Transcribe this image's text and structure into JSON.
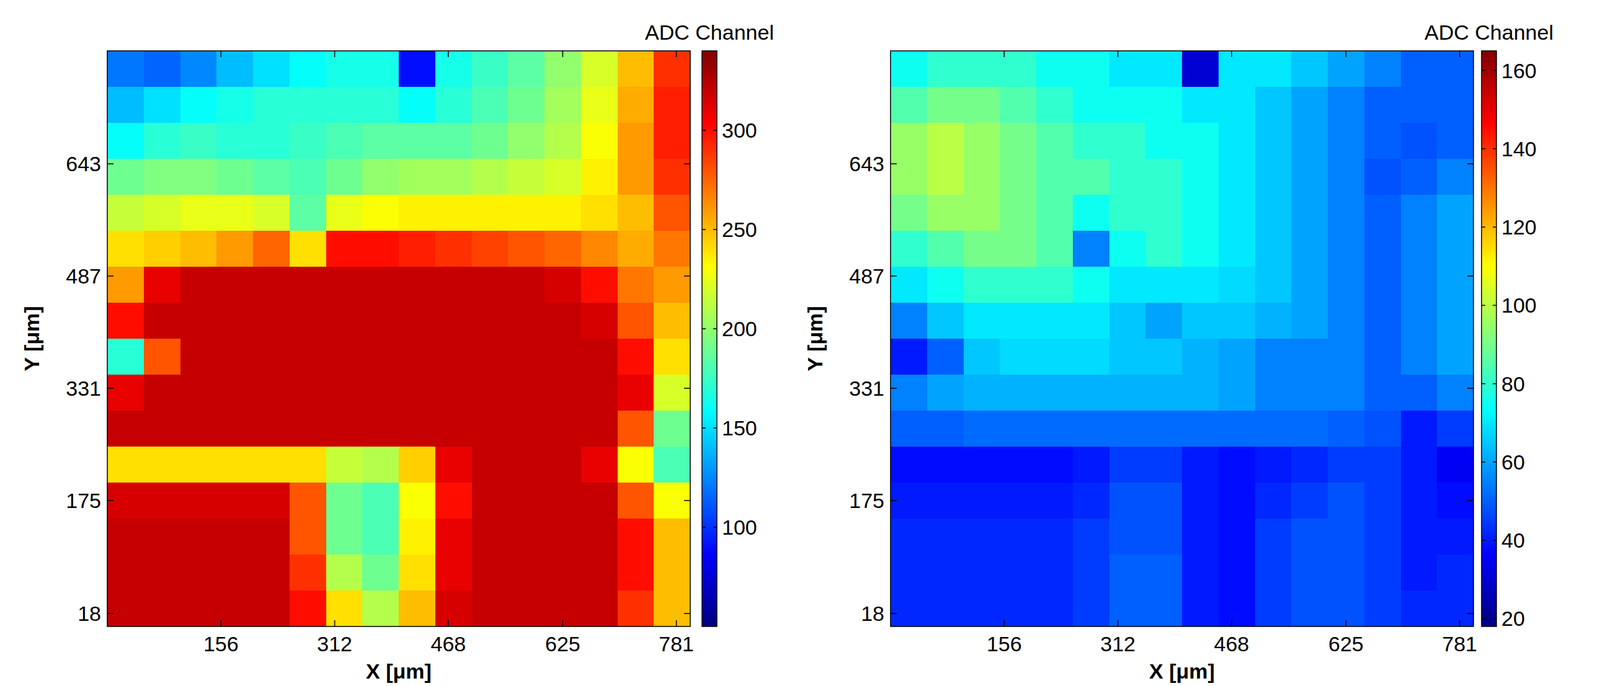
{
  "chart_data": [
    {
      "type": "heatmap",
      "xlabel": "X [μm]",
      "ylabel": "Y [μm]",
      "xlim": [
        0,
        800
      ],
      "ylim": [
        0,
        800
      ],
      "xticks": [
        156,
        312,
        468,
        625,
        781
      ],
      "yticks": [
        18,
        175,
        331,
        487,
        643
      ],
      "colorbar_label": "ADC Channel",
      "color_range": [
        50,
        340
      ],
      "color_ticks": [
        100,
        150,
        200,
        250,
        300
      ],
      "cells": [
        [
          120,
          115,
          125,
          140,
          150,
          160,
          165,
          165,
          90,
          165,
          175,
          185,
          200,
          220,
          250,
          290
        ],
        [
          140,
          150,
          160,
          165,
          170,
          170,
          170,
          170,
          160,
          170,
          180,
          190,
          205,
          225,
          255,
          295
        ],
        [
          160,
          170,
          175,
          170,
          170,
          175,
          180,
          185,
          185,
          185,
          190,
          200,
          210,
          230,
          260,
          295
        ],
        [
          190,
          195,
          195,
          190,
          185,
          180,
          190,
          200,
          205,
          205,
          210,
          215,
          220,
          235,
          260,
          290
        ],
        [
          215,
          220,
          225,
          225,
          220,
          185,
          225,
          230,
          235,
          235,
          235,
          235,
          235,
          240,
          250,
          280
        ],
        [
          240,
          245,
          250,
          260,
          275,
          240,
          300,
          300,
          295,
          290,
          285,
          280,
          275,
          265,
          255,
          270
        ],
        [
          260,
          310,
          320,
          320,
          320,
          320,
          320,
          320,
          320,
          320,
          320,
          320,
          315,
          300,
          270,
          260
        ],
        [
          300,
          320,
          320,
          320,
          320,
          320,
          320,
          320,
          320,
          320,
          320,
          320,
          320,
          315,
          280,
          250
        ],
        [
          170,
          280,
          320,
          320,
          320,
          320,
          320,
          320,
          320,
          320,
          320,
          320,
          320,
          320,
          300,
          240
        ],
        [
          310,
          320,
          320,
          320,
          320,
          320,
          320,
          320,
          320,
          320,
          320,
          320,
          320,
          320,
          310,
          220
        ],
        [
          320,
          320,
          320,
          320,
          320,
          320,
          320,
          320,
          320,
          320,
          320,
          320,
          320,
          320,
          280,
          190
        ],
        [
          240,
          240,
          240,
          240,
          240,
          240,
          215,
          210,
          245,
          310,
          320,
          320,
          320,
          310,
          230,
          180
        ],
        [
          315,
          315,
          315,
          315,
          315,
          280,
          190,
          180,
          230,
          300,
          320,
          320,
          320,
          320,
          280,
          230
        ],
        [
          320,
          320,
          320,
          320,
          320,
          280,
          190,
          180,
          235,
          310,
          320,
          320,
          320,
          320,
          300,
          250
        ],
        [
          320,
          320,
          320,
          320,
          320,
          290,
          210,
          190,
          240,
          310,
          320,
          320,
          320,
          320,
          300,
          250
        ],
        [
          320,
          320,
          320,
          320,
          320,
          300,
          240,
          210,
          250,
          315,
          320,
          320,
          320,
          320,
          290,
          250
        ]
      ]
    },
    {
      "type": "heatmap",
      "xlabel": "X [μm]",
      "ylabel": "Y [μm]",
      "xlim": [
        0,
        800
      ],
      "ylim": [
        0,
        800
      ],
      "xticks": [
        156,
        312,
        468,
        625,
        781
      ],
      "yticks": [
        18,
        175,
        331,
        487,
        643
      ],
      "colorbar_label": "ADC Channel",
      "color_range": [
        18,
        165
      ],
      "color_ticks": [
        20,
        40,
        60,
        80,
        100,
        120,
        140,
        160
      ],
      "cells": [
        [
          75,
          80,
          80,
          80,
          75,
          75,
          70,
          70,
          30,
          70,
          70,
          65,
          60,
          55,
          50,
          50
        ],
        [
          85,
          90,
          90,
          85,
          80,
          75,
          75,
          75,
          70,
          70,
          65,
          60,
          55,
          50,
          50,
          50
        ],
        [
          95,
          100,
          95,
          90,
          85,
          80,
          80,
          75,
          75,
          70,
          65,
          60,
          55,
          50,
          48,
          50
        ],
        [
          95,
          100,
          95,
          90,
          85,
          85,
          80,
          80,
          75,
          70,
          65,
          60,
          55,
          48,
          50,
          55
        ],
        [
          90,
          95,
          95,
          90,
          85,
          75,
          80,
          80,
          75,
          70,
          65,
          60,
          55,
          50,
          55,
          60
        ],
        [
          80,
          85,
          90,
          90,
          85,
          55,
          75,
          80,
          75,
          70,
          65,
          60,
          55,
          50,
          55,
          60
        ],
        [
          70,
          75,
          80,
          80,
          80,
          75,
          70,
          70,
          70,
          68,
          65,
          60,
          55,
          50,
          55,
          60
        ],
        [
          55,
          65,
          70,
          70,
          70,
          70,
          65,
          60,
          65,
          65,
          62,
          60,
          55,
          50,
          55,
          60
        ],
        [
          40,
          50,
          65,
          68,
          68,
          68,
          65,
          65,
          62,
          60,
          55,
          55,
          55,
          50,
          55,
          60
        ],
        [
          55,
          60,
          62,
          62,
          62,
          62,
          62,
          62,
          62,
          60,
          55,
          55,
          55,
          50,
          50,
          55
        ],
        [
          50,
          50,
          52,
          52,
          52,
          52,
          52,
          52,
          52,
          52,
          52,
          52,
          50,
          48,
          40,
          45
        ],
        [
          38,
          38,
          38,
          38,
          38,
          40,
          45,
          45,
          40,
          38,
          40,
          42,
          45,
          45,
          40,
          35
        ],
        [
          40,
          40,
          40,
          40,
          40,
          42,
          48,
          48,
          40,
          38,
          42,
          45,
          48,
          45,
          40,
          38
        ],
        [
          42,
          42,
          42,
          42,
          42,
          45,
          48,
          48,
          40,
          38,
          45,
          48,
          48,
          45,
          40,
          40
        ],
        [
          42,
          42,
          42,
          42,
          42,
          45,
          50,
          50,
          40,
          38,
          45,
          48,
          48,
          45,
          40,
          42
        ],
        [
          42,
          42,
          42,
          42,
          42,
          45,
          50,
          50,
          40,
          38,
          45,
          48,
          48,
          45,
          42,
          42
        ]
      ]
    }
  ]
}
